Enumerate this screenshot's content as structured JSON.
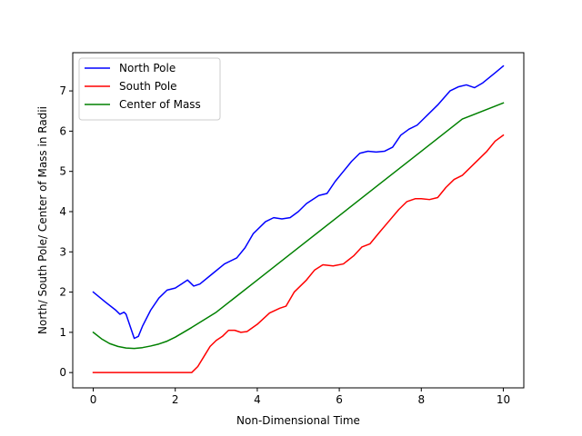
{
  "chart_data": {
    "type": "line",
    "xlabel": "Non-Dimensional Time",
    "ylabel": "North/ South Pole/ Center of Mass in Radii",
    "xlim": [
      -0.5,
      10.5
    ],
    "ylim": [
      -0.38,
      7.95
    ],
    "xticks": [
      0,
      2,
      4,
      6,
      8,
      10
    ],
    "yticks": [
      0,
      1,
      2,
      3,
      4,
      5,
      6,
      7
    ],
    "grid": false,
    "legend_position": "upper-left",
    "series": [
      {
        "name": "North Pole",
        "color": "#0000ff",
        "x": [
          0,
          0.3,
          0.55,
          0.65,
          0.75,
          0.8,
          0.9,
          1.0,
          1.1,
          1.2,
          1.4,
          1.6,
          1.8,
          2.0,
          2.15,
          2.3,
          2.45,
          2.6,
          2.9,
          3.2,
          3.5,
          3.7,
          3.9,
          4.2,
          4.4,
          4.6,
          4.8,
          5.0,
          5.2,
          5.5,
          5.7,
          5.9,
          6.1,
          6.3,
          6.5,
          6.7,
          6.9,
          7.1,
          7.3,
          7.5,
          7.7,
          7.9,
          8.1,
          8.4,
          8.7,
          8.9,
          9.1,
          9.3,
          9.5,
          9.8,
          10.0
        ],
        "y": [
          2.0,
          1.75,
          1.55,
          1.45,
          1.5,
          1.45,
          1.15,
          0.85,
          0.9,
          1.15,
          1.55,
          1.85,
          2.05,
          2.1,
          2.2,
          2.3,
          2.15,
          2.2,
          2.45,
          2.7,
          2.85,
          3.1,
          3.45,
          3.75,
          3.85,
          3.82,
          3.85,
          4.0,
          4.2,
          4.4,
          4.45,
          4.75,
          5.0,
          5.25,
          5.45,
          5.5,
          5.48,
          5.5,
          5.6,
          5.9,
          6.05,
          6.15,
          6.35,
          6.65,
          7.0,
          7.1,
          7.15,
          7.08,
          7.2,
          7.45,
          7.62
        ]
      },
      {
        "name": "South Pole",
        "color": "#ff0000",
        "x": [
          0,
          1.0,
          2.0,
          2.4,
          2.55,
          2.7,
          2.85,
          3.0,
          3.15,
          3.3,
          3.45,
          3.6,
          3.75,
          4.0,
          4.3,
          4.55,
          4.7,
          4.9,
          5.2,
          5.4,
          5.6,
          5.85,
          6.1,
          6.35,
          6.55,
          6.75,
          6.95,
          7.2,
          7.45,
          7.65,
          7.85,
          8.0,
          8.2,
          8.4,
          8.6,
          8.8,
          9.0,
          9.3,
          9.6,
          9.8,
          10.0
        ],
        "y": [
          0,
          0,
          0,
          0,
          0.15,
          0.4,
          0.65,
          0.8,
          0.9,
          1.05,
          1.05,
          1.0,
          1.02,
          1.2,
          1.48,
          1.6,
          1.65,
          2.0,
          2.3,
          2.55,
          2.68,
          2.65,
          2.7,
          2.9,
          3.12,
          3.2,
          3.45,
          3.75,
          4.05,
          4.25,
          4.32,
          4.32,
          4.3,
          4.35,
          4.6,
          4.8,
          4.9,
          5.2,
          5.5,
          5.75,
          5.9
        ]
      },
      {
        "name": "Center of Mass",
        "color": "#008000",
        "x": [
          0,
          0.2,
          0.4,
          0.6,
          0.8,
          1.0,
          1.2,
          1.4,
          1.6,
          1.8,
          2.0,
          2.4,
          3.0,
          4.0,
          5.0,
          6.0,
          7.0,
          8.0,
          9.0,
          10.0
        ],
        "y": [
          1.0,
          0.84,
          0.72,
          0.65,
          0.61,
          0.6,
          0.62,
          0.66,
          0.71,
          0.78,
          0.88,
          1.12,
          1.5,
          2.3,
          3.1,
          3.9,
          4.7,
          5.5,
          6.3,
          6.7
        ]
      }
    ]
  }
}
